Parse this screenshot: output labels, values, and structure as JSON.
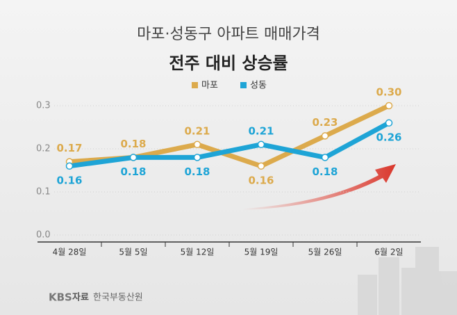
{
  "chart_data": {
    "type": "line",
    "title": "마포·성동구 아파트 매매가격",
    "subtitle": "전주 대비 상승률",
    "categories": [
      "4월 28일",
      "5월 5일",
      "5월 12일",
      "5월 19일",
      "5월 26일",
      "6월 2일"
    ],
    "series": [
      {
        "name": "마포",
        "color": "#dcaa4c",
        "values": [
          0.17,
          0.18,
          0.21,
          0.16,
          0.23,
          0.3
        ],
        "value_labels": [
          "0.17",
          "0.18",
          "0.21",
          "0.16",
          "0.23",
          "0.30"
        ]
      },
      {
        "name": "성동",
        "color": "#1ea4d6",
        "values": [
          0.16,
          0.18,
          0.18,
          0.21,
          0.18,
          0.26
        ],
        "value_labels": [
          "0.16",
          "0.18",
          "0.18",
          "0.21",
          "0.18",
          "0.26"
        ]
      }
    ],
    "ylim": [
      0,
      0.3
    ],
    "yticks": [
      {
        "value": 0,
        "label": "0.0"
      },
      0.1,
      0.2,
      0.3
    ],
    "grid": true,
    "legend": "top",
    "source_logo": "KBS",
    "source_label": "자료",
    "source": "한국부동산원"
  }
}
